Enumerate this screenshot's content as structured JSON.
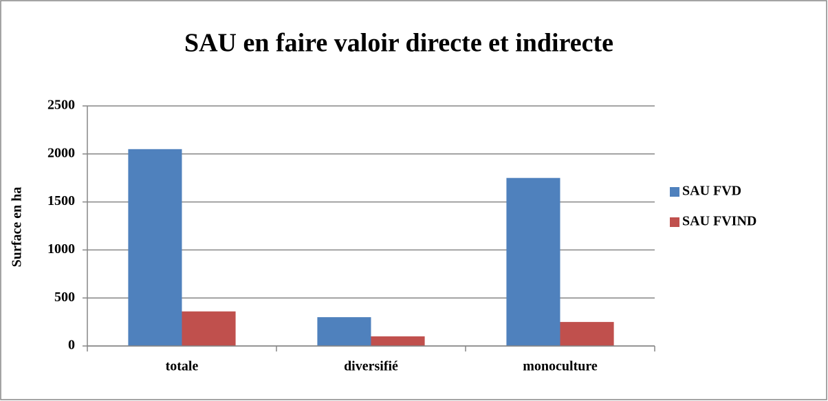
{
  "chart_data": {
    "type": "bar",
    "title": "SAU en faire valoir directe et indirecte",
    "y_label": "Surface en ha",
    "categories": [
      "totale",
      "diversifié",
      "monoculture"
    ],
    "series": [
      {
        "name": "SAU FVD",
        "color": "#4f81bd",
        "values": [
          2050,
          300,
          1750
        ]
      },
      {
        "name": "SAU FVIND",
        "color": "#c0504d",
        "values": [
          360,
          100,
          250
        ]
      }
    ],
    "ylim": [
      0,
      2500
    ],
    "yticks": [
      0,
      500,
      1000,
      1500,
      2000,
      2500
    ],
    "grid": true,
    "legend": "right"
  }
}
